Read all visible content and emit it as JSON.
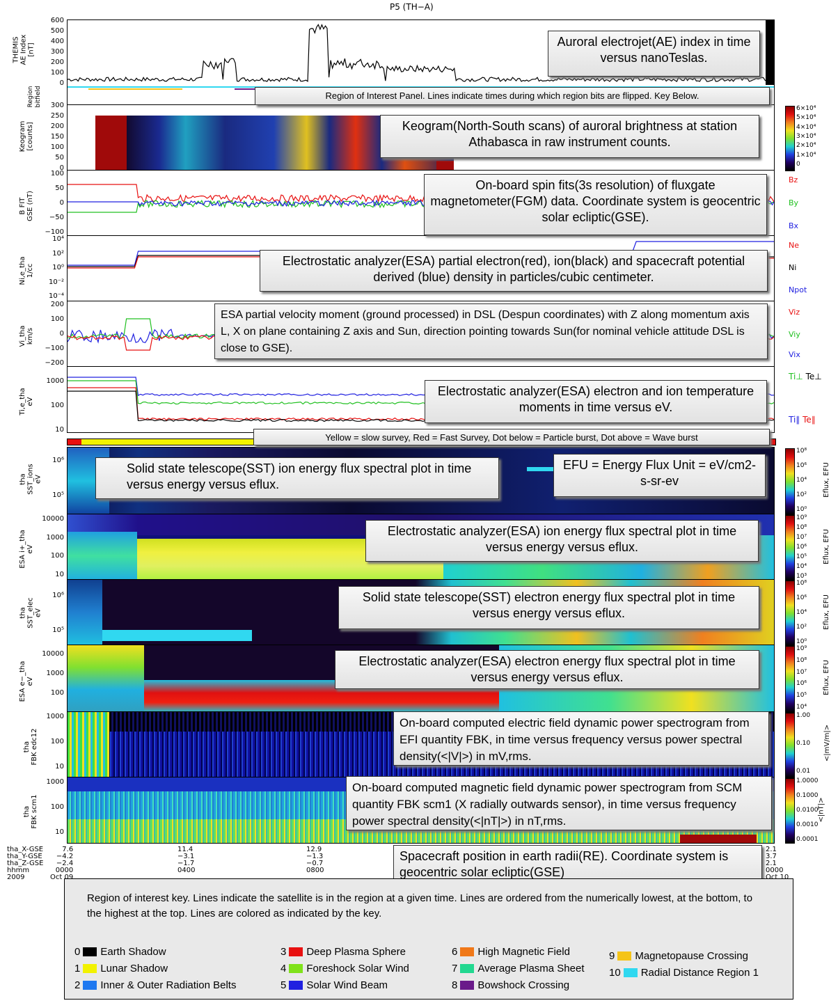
{
  "title": "P5 (TH−A)",
  "panels": {
    "ae": {
      "label": "THEMIS\nAE Index\n[nT]",
      "ticks": [
        "600",
        "500",
        "400",
        "300",
        "200",
        "100",
        "0"
      ]
    },
    "roi": {
      "label": "Region\nbitfield"
    },
    "keogram": {
      "label": "Keogram\n[counts]",
      "ticks": [
        "300",
        "250",
        "200",
        "150",
        "100",
        "50",
        "0"
      ],
      "colorbar": [
        "6×10⁴",
        "5×10⁴",
        "4×10⁴",
        "3×10⁴",
        "2×10⁴",
        "1×10⁴",
        "0"
      ]
    },
    "fgm": {
      "label": "B FIT\nGSE (nT)",
      "ticks": [
        "100",
        "50",
        "0",
        "−50",
        "−100"
      ],
      "legend": [
        "Bz",
        "By",
        "Bx"
      ]
    },
    "density": {
      "label": "Ni,e_tha\n1/cc",
      "ticks": [
        "10⁴",
        "10²",
        "10⁰",
        "10⁻²",
        "10⁻⁴"
      ],
      "legend": [
        "Ne",
        "Ni",
        "Npot"
      ]
    },
    "velocity": {
      "label": "Vi_tha\nkm/s",
      "ticks": [
        "200",
        "100",
        "0",
        "−100",
        "−200"
      ],
      "legend": [
        "Viz",
        "Viy",
        "Vix"
      ]
    },
    "temperature": {
      "label": "Ti,e_tha\neV",
      "ticks": [
        "1000",
        "100",
        "10"
      ],
      "legend_perp": [
        "Ti⊥",
        "Te⊥"
      ],
      "legend_par": [
        "Ti∥",
        "Te∥"
      ]
    },
    "sst_ion": {
      "label": "tha\nSST_ions\neV",
      "ticks": [
        "10⁶",
        "10⁵"
      ],
      "colorbar": [
        "10⁸",
        "10⁶",
        "10⁴",
        "10²",
        "10⁰"
      ],
      "cbtitle": "Eflux, EFU"
    },
    "esa_ion": {
      "label": "ESA i+_tha\neV",
      "ticks": [
        "10000",
        "1000",
        "100",
        "10"
      ],
      "colorbar": [
        "10⁹",
        "10⁸",
        "10⁷",
        "10⁶",
        "10⁵",
        "10⁴",
        "10³"
      ],
      "cbtitle": "Eflux, EFU"
    },
    "sst_elec": {
      "label": "tha\nSST_elec\neV",
      "ticks": [
        "10⁶",
        "10⁵"
      ],
      "colorbar": [
        "10⁸",
        "10⁶",
        "10⁴",
        "10²",
        "10⁰"
      ],
      "cbtitle": "Eflux, EFU"
    },
    "esa_elec": {
      "label": "ESA e−_tha\neV",
      "ticks": [
        "10000",
        "1000",
        "100"
      ],
      "colorbar": [
        "10⁹",
        "10⁸",
        "10⁷",
        "10⁶",
        "10⁵",
        "10⁴"
      ],
      "cbtitle": "Eflux, EFU"
    },
    "fbk_edc": {
      "label": "tha\nFBK edc12",
      "ticks": [
        "1000",
        "100",
        "10"
      ],
      "colorbar": [
        "1.00",
        "0.10",
        "0.01"
      ],
      "cbtitle": "<|mV/m|>"
    },
    "fbk_scm": {
      "label": "tha\nFBK scm1",
      "ticks": [
        "1000",
        "100",
        "10"
      ],
      "colorbar": [
        "1.0000",
        "0.1000",
        "0.0100",
        "0.0010",
        "0.0001"
      ],
      "cbtitle": "<|nT|>"
    }
  },
  "callouts": {
    "ae": "Auroral electrojet(AE) index in time versus nanoTeslas.",
    "roi": "Region of Interest Panel. Lines indicate times during which region bits are flipped. Key Below.",
    "keogram": "Keogram(North-South scans) of auroral brightness at station Athabasca in raw instrument counts.",
    "fgm": "On-board spin fits(3s resolution) of fluxgate magnetometer(FGM) data.  Coordinate system is geocentric solar ecliptic(GSE).",
    "density": "Electrostatic analyzer(ESA) partial electron(red), ion(black) and spacecraft potential derived (blue) density in particles/cubic centimeter.",
    "velocity": "ESA partial velocity moment (ground processed) in DSL (Despun coordinates) with Z along momentum  axis L, X on plane containing Z axis and Sun, direction pointing towards Sun(for nominal vehicle attitude DSL is close to GSE).",
    "temperature": "Electrostatic analyzer(ESA) electron and ion temperature moments in time versus eV.",
    "mode": "Yellow = slow survey, Red = Fast Survey, Dot below = Particle burst, Dot above = Wave burst",
    "sst_ion": "Solid state telescope(SST) ion energy flux spectral plot in time versus energy versus eflux.",
    "efu": "EFU = Energy Flux Unit = eV/cm2-s-sr-ev",
    "esa_ion": "Electrostatic analyzer(ESA) ion energy flux spectral plot in time versus energy versus eflux.",
    "sst_elec": "Solid state telescope(SST) electron energy flux spectral plot in time versus energy versus eflux.",
    "esa_elec": "Electrostatic analyzer(ESA) electron energy flux spectral plot in time versus energy versus eflux.",
    "fbk_edc": "On-board computed electric field dynamic power spectrogram from EFI quantity FBK, in time versus frequency versus power spectral density(<|V|>) in mV,rms.",
    "fbk_scm": "On-board computed magnetic field dynamic power spectrogram from SCM quantity FBK scm1 (X radially outwards sensor), in time versus frequency power spectral density(<|nT|>) in nT,rms.",
    "position": "Spacecraft position in earth radii(RE). Coordinate system is geocentric solar ecliptic(GSE)"
  },
  "orbit": {
    "labels": "tha_X-GSE\ntha_Y-GSE\ntha_Z-GSE\nhhmm\n2009",
    "col0": "7.6\n−4.2\n−2.4\n0000\nOct 09",
    "col1": "11.4\n−3.1\n−1.7\n0400",
    "col2": "12.9\n−1.3\n−0.7\n0800",
    "col3": "2.1\n3.7\n2.1\n0000\nOct 10"
  },
  "key": {
    "intro": "Region of interest key.  Lines indicate the satellite is in the region at a given time. Lines are ordered from the numerically lowest, at the bottom, to the highest at the top.  Lines are colored as indicated by the key.",
    "items": [
      {
        "num": "0",
        "label": "Earth Shadow",
        "color": "#000000"
      },
      {
        "num": "1",
        "label": "Lunar Shadow",
        "color": "#f2f200"
      },
      {
        "num": "2",
        "label": "Inner & Outer Radiation Belts",
        "color": "#1e78f0"
      },
      {
        "num": "3",
        "label": "Deep Plasma Sphere",
        "color": "#e81010"
      },
      {
        "num": "4",
        "label": "Foreshock Solar Wind",
        "color": "#7fe21a"
      },
      {
        "num": "5",
        "label": "Solar Wind Beam",
        "color": "#2020e0"
      },
      {
        "num": "6",
        "label": "High Magnetic Field",
        "color": "#f07818"
      },
      {
        "num": "7",
        "label": "Average Plasma Sheet",
        "color": "#22d890"
      },
      {
        "num": "8",
        "label": "Bowshock Crossing",
        "color": "#6a1a8a"
      },
      {
        "num": "9",
        "label": "Magnetopause Crossing",
        "color": "#f5c418"
      },
      {
        "num": "10",
        "label": "Radial Distance Region 1",
        "color": "#30d8f0"
      }
    ]
  }
}
